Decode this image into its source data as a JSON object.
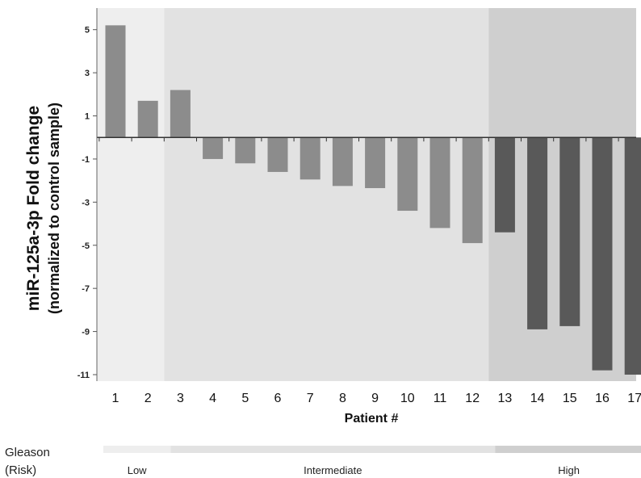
{
  "chart_data": {
    "type": "bar",
    "categories": [
      "1",
      "2",
      "3",
      "4",
      "5",
      "6",
      "7",
      "8",
      "9",
      "10",
      "11",
      "12",
      "13",
      "14",
      "15",
      "16",
      "17"
    ],
    "values": [
      5.2,
      1.7,
      2.2,
      -1.0,
      -1.2,
      -1.6,
      -1.95,
      -2.25,
      -2.35,
      -3.4,
      -4.2,
      -4.9,
      -4.4,
      -8.9,
      -8.75,
      -10.8,
      -11.0
    ],
    "ylabel": "miR-125a-3p Fold change",
    "ylabel_sub": "(normalized to control sample)",
    "xlabel": "Patient #",
    "yticks": [
      5,
      3,
      1,
      -1,
      -3,
      -5,
      -7,
      -9,
      -11
    ],
    "ylim": [
      -11,
      6
    ],
    "grid": false,
    "risk_groups": [
      {
        "name": "Low",
        "start": 1,
        "end": 2,
        "bg": "#eeeeee",
        "bar": "#8c8c8c"
      },
      {
        "name": "Intermediate",
        "start": 3,
        "end": 12,
        "bg": "#e2e2e2",
        "bar": "#8c8c8c"
      },
      {
        "name": "High",
        "start": 13,
        "end": 17,
        "bg": "#cfcfcf",
        "bar": "#595959"
      }
    ]
  },
  "gleason": {
    "label_line1": "Gleason",
    "label_line2": "(Risk)"
  }
}
